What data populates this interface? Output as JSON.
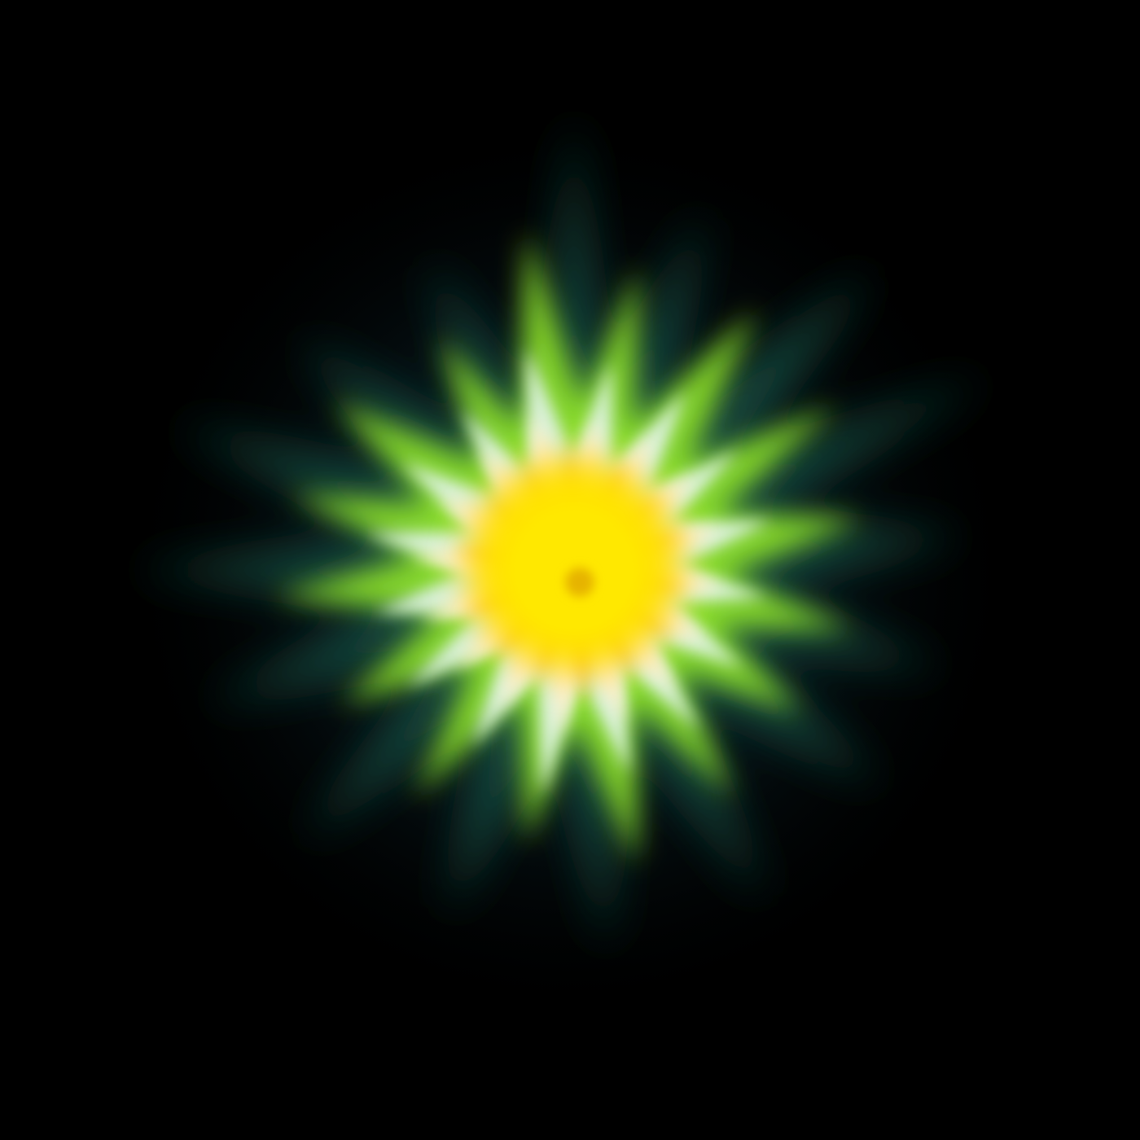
{
  "scene": {
    "subject": "radiant-light-burst",
    "colors": {
      "background": "#000000",
      "outer_glow": "#0d2a33",
      "outer_ray": "#1a5a4a",
      "green_ray": "#8fe32a",
      "pale_ray": "#dff3e6",
      "cream_ray": "#fff1d2",
      "orange_ray": "#f5a623",
      "core": "#ffe500",
      "core_center": "#ffd200",
      "core_spot": "#e8b800"
    }
  }
}
